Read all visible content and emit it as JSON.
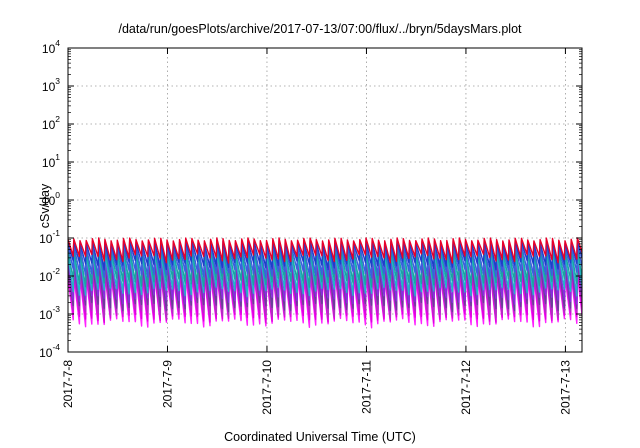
{
  "chart_data": {
    "type": "line",
    "title": "/data/run/goesPlots/archive/2017-07-13/07:00/flux/../bryn/5daysMars.plot",
    "xlabel": "Coordinated Universal Time (UTC)",
    "ylabel": "cSv/day",
    "yscale": "log",
    "ylim": [
      0.0001,
      10000
    ],
    "y_ticks": [
      {
        "base": "10",
        "exp": "-4",
        "value": 0.0001
      },
      {
        "base": "10",
        "exp": "-3",
        "value": 0.001
      },
      {
        "base": "10",
        "exp": "-2",
        "value": 0.01
      },
      {
        "base": "10",
        "exp": "-1",
        "value": 0.1
      },
      {
        "base": "10",
        "exp": "0",
        "value": 1
      },
      {
        "base": "10",
        "exp": "1",
        "value": 10
      },
      {
        "base": "10",
        "exp": "2",
        "value": 100
      },
      {
        "base": "10",
        "exp": "3",
        "value": 1000
      },
      {
        "base": "10",
        "exp": "4",
        "value": 10000
      }
    ],
    "x_ticks": [
      "2017-7-8",
      "2017-7-9",
      "2017-7-10",
      "2017-7-11",
      "2017-7-12",
      "2017-7-13"
    ],
    "xlim": [
      "2017-07-08 00:00",
      "2017-07-13 04:00"
    ],
    "grid": true,
    "legend": "none",
    "pattern": {
      "description_source": "sawtooth orbit modulation, roughly 16 cycles per day",
      "cycles_per_day": 16,
      "series_peak_min": [
        {
          "peak": 0.1,
          "min": 0.03
        },
        {
          "peak": 0.085,
          "min": 0.02
        },
        {
          "peak": 0.07,
          "min": 0.012
        },
        {
          "peak": 0.055,
          "min": 0.007
        },
        {
          "peak": 0.042,
          "min": 0.004
        },
        {
          "peak": 0.032,
          "min": 0.0025
        },
        {
          "peak": 0.024,
          "min": 0.0016
        },
        {
          "peak": 0.018,
          "min": 0.0011
        },
        {
          "peak": 0.014,
          "min": 0.0008
        },
        {
          "peak": 0.011,
          "min": 0.0006
        }
      ]
    },
    "series_colors": [
      "#e8002a",
      "#1f3ec9",
      "#3a5fe0",
      "#1aa3a3",
      "#22b4c8",
      "#8a2be2",
      "#6a3d9a",
      "#b030c0",
      "#e000e0",
      "#ff20ff"
    ]
  }
}
